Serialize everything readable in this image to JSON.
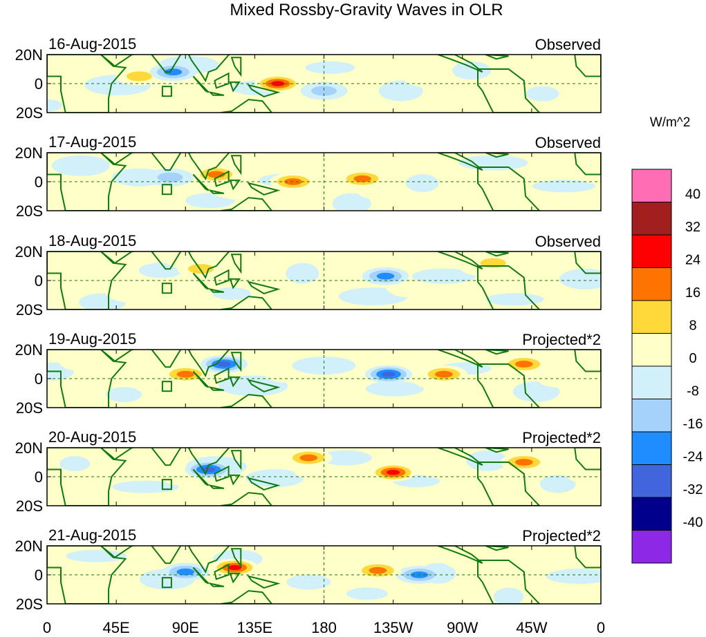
{
  "chart_data": {
    "type": "heatmap",
    "title": "Mixed Rossby-Gravity Waves in OLR",
    "xlabel": "",
    "ylabel": "",
    "x_ticks": [
      "0",
      "45E",
      "90E",
      "135E",
      "180",
      "135W",
      "90W",
      "45W",
      "0"
    ],
    "y_ticks": [
      "20N",
      "0",
      "20S"
    ],
    "xlim_deg_east": [
      0,
      360
    ],
    "ylim_deg": [
      -20,
      20
    ],
    "colorbar": {
      "units": "W/m^2",
      "levels": [
        "40",
        "32",
        "24",
        "16",
        "8",
        "0",
        "-8",
        "-16",
        "-24",
        "-32",
        "-40"
      ],
      "colors": [
        "#ff6eb4",
        "#a11f1f",
        "#ff0000",
        "#ff7400",
        "#ffd83a",
        "#ffffc8",
        "#d2f0fa",
        "#a4d2fa",
        "#1f8cff",
        "#4165dc",
        "#00008c",
        "#8c28e6"
      ]
    },
    "panels": [
      {
        "date": "16-Aug-2015",
        "label": "Observed",
        "features": [
          {
            "lon": 150,
            "lat": 0,
            "value": 24
          },
          {
            "lon": 60,
            "lat": 5,
            "value": 8
          },
          {
            "lon": 82,
            "lat": 8,
            "value": -16
          },
          {
            "lon": 180,
            "lat": -5,
            "value": -8
          }
        ]
      },
      {
        "date": "17-Aug-2015",
        "label": "Observed",
        "features": [
          {
            "lon": 110,
            "lat": 5,
            "value": 16
          },
          {
            "lon": 160,
            "lat": 0,
            "value": 16
          },
          {
            "lon": 205,
            "lat": 2,
            "value": 16
          },
          {
            "lon": 80,
            "lat": 3,
            "value": -8
          }
        ]
      },
      {
        "date": "18-Aug-2015",
        "label": "Observed",
        "features": [
          {
            "lon": 100,
            "lat": 8,
            "value": 8
          },
          {
            "lon": 220,
            "lat": 3,
            "value": -16
          },
          {
            "lon": 290,
            "lat": 12,
            "value": 8
          }
        ]
      },
      {
        "date": "19-Aug-2015",
        "label": "Projected*2",
        "features": [
          {
            "lon": 90,
            "lat": 3,
            "value": 16
          },
          {
            "lon": 115,
            "lat": 10,
            "value": -24
          },
          {
            "lon": 258,
            "lat": 3,
            "value": 16
          },
          {
            "lon": 222,
            "lat": 3,
            "value": -24
          },
          {
            "lon": 310,
            "lat": 10,
            "value": 16
          }
        ]
      },
      {
        "date": "20-Aug-2015",
        "label": "Projected*2",
        "features": [
          {
            "lon": 225,
            "lat": 3,
            "value": 24
          },
          {
            "lon": 105,
            "lat": 5,
            "value": -24
          },
          {
            "lon": 170,
            "lat": 13,
            "value": 16
          },
          {
            "lon": 310,
            "lat": 10,
            "value": 16
          }
        ]
      },
      {
        "date": "21-Aug-2015",
        "label": "Projected*2",
        "features": [
          {
            "lon": 122,
            "lat": 5,
            "value": 24
          },
          {
            "lon": 90,
            "lat": 2,
            "value": -16
          },
          {
            "lon": 242,
            "lat": 0,
            "value": -16
          },
          {
            "lon": 215,
            "lat": 3,
            "value": 16
          }
        ]
      }
    ]
  }
}
